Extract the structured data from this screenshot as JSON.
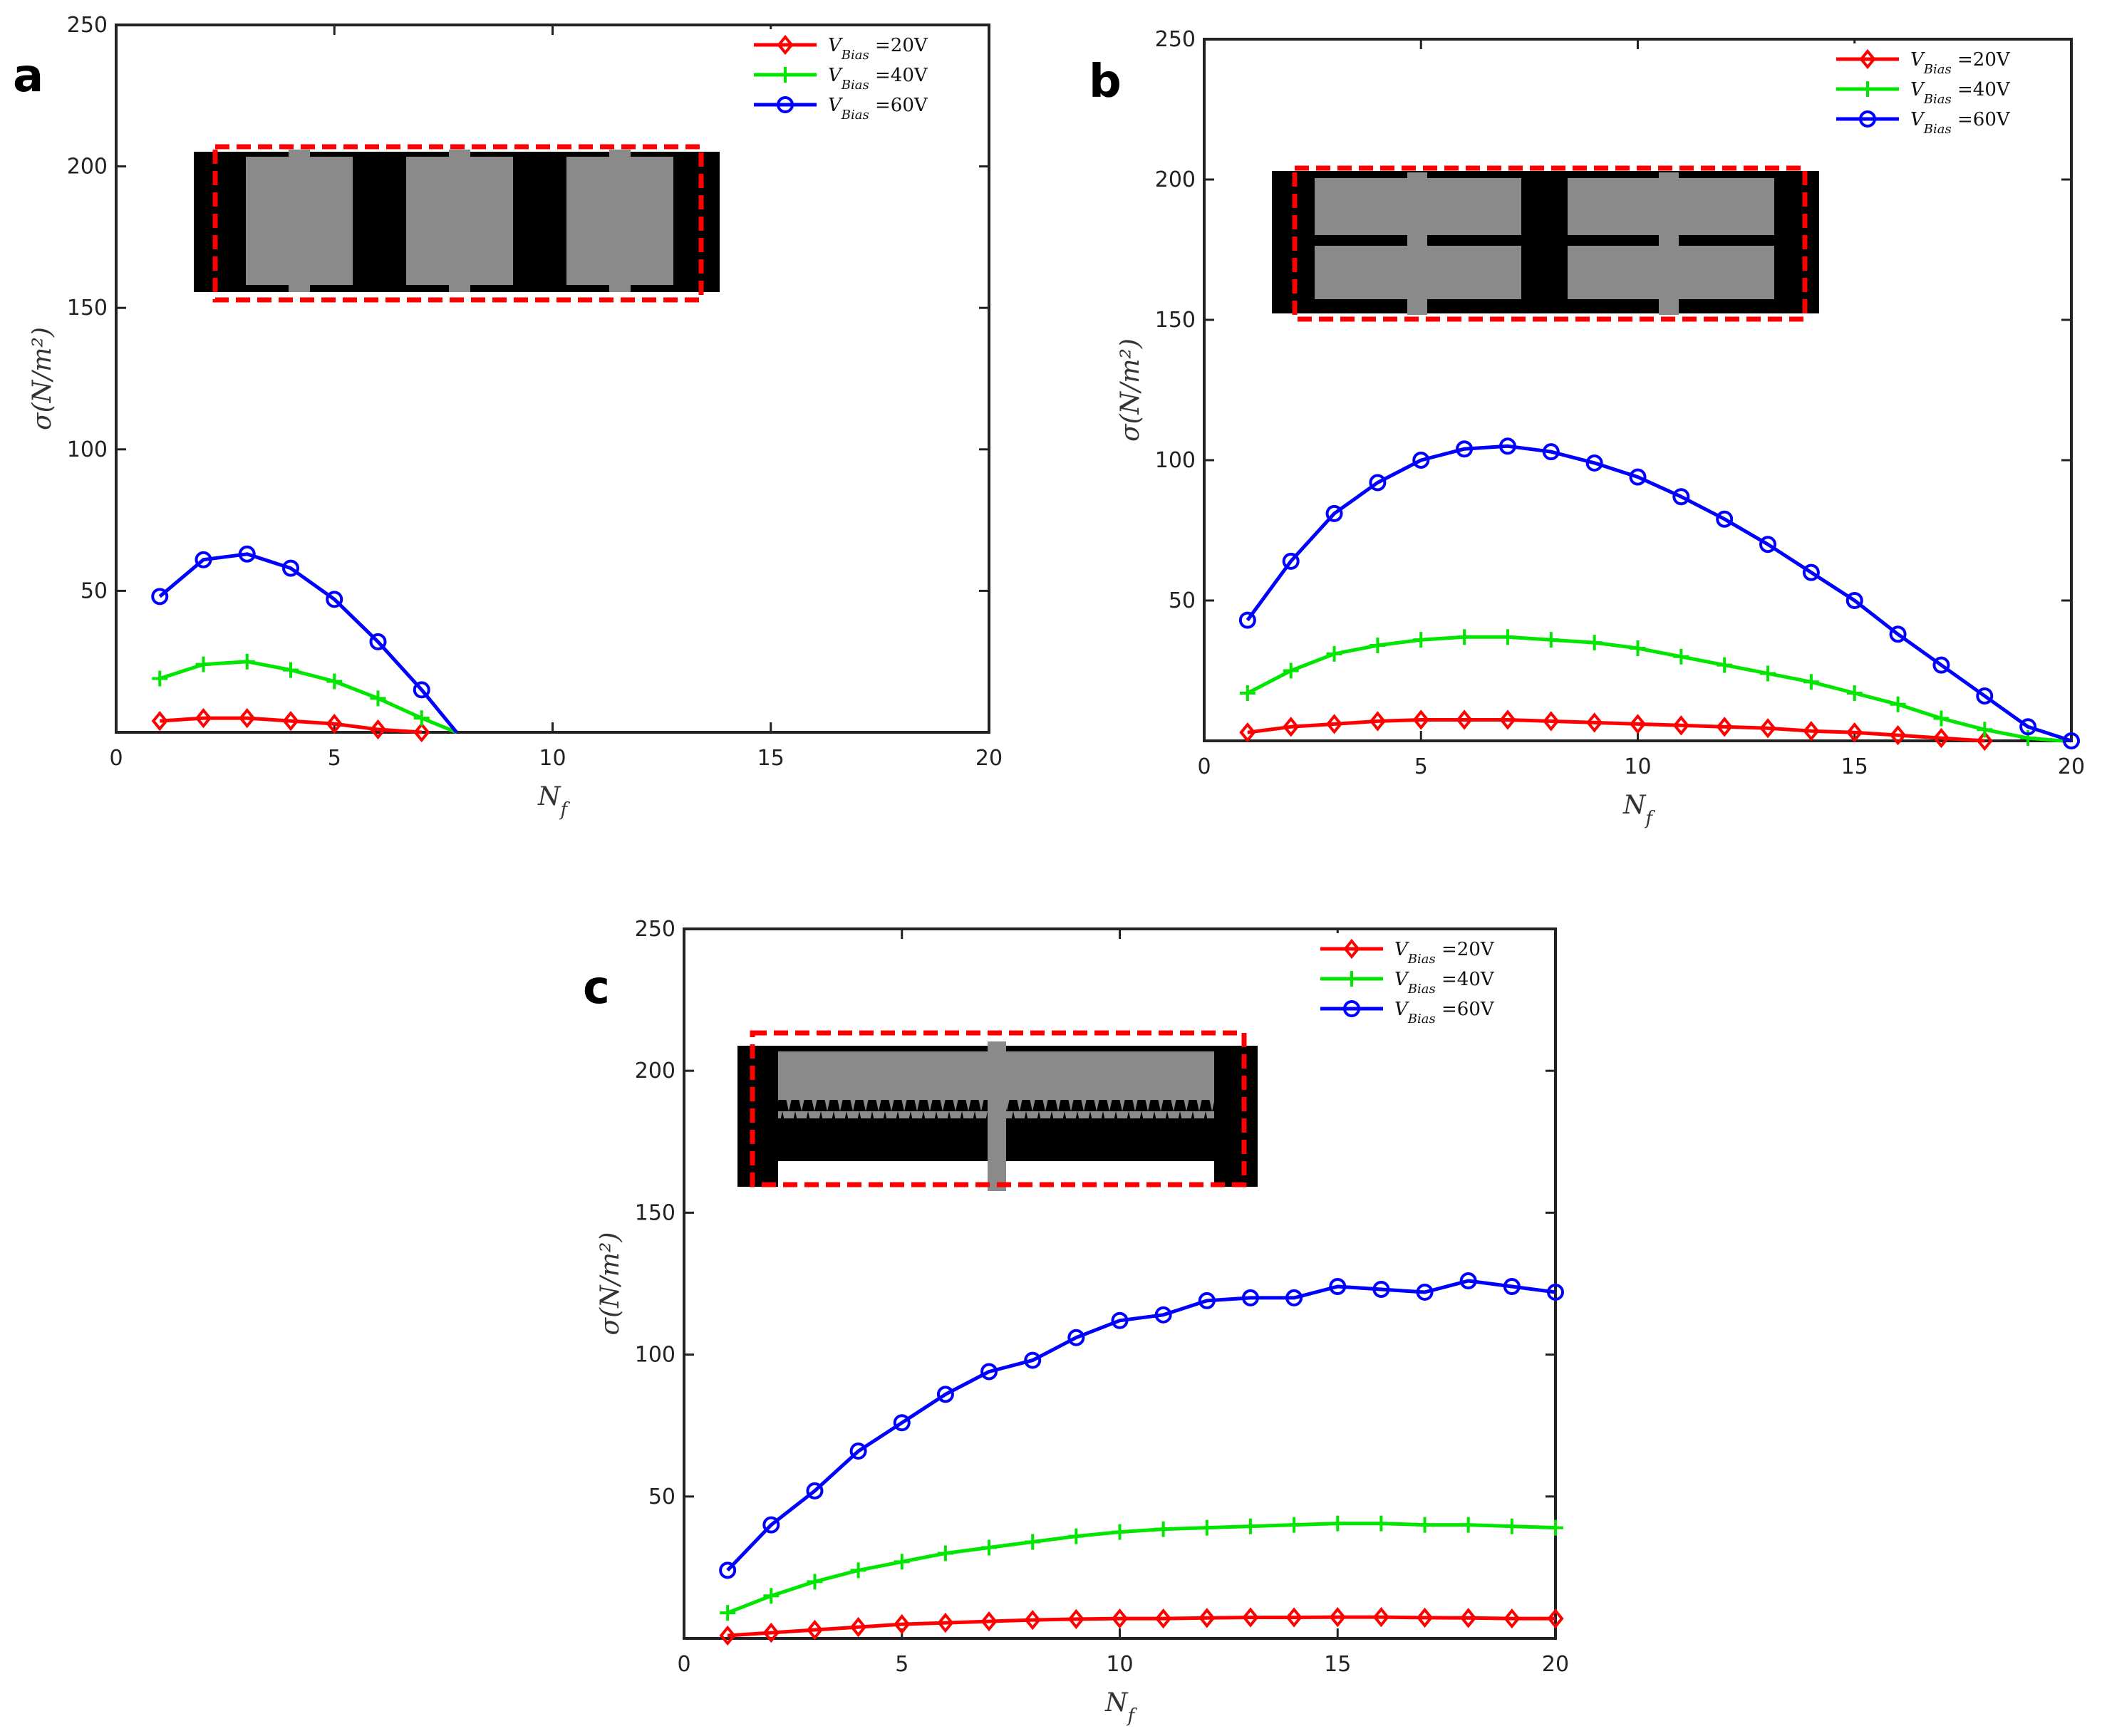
{
  "figure": {
    "panel_letters": [
      "a",
      "b",
      "c"
    ]
  },
  "chart_data": [
    {
      "type": "line",
      "panel": "a",
      "xlabel": "N_f",
      "ylabel": "σ(N/m²)",
      "xlim": [
        0,
        20
      ],
      "ylim": [
        0,
        250
      ],
      "xticks": [
        "0",
        "5",
        "10",
        "15",
        "20"
      ],
      "yticks": [
        "50",
        "100",
        "150",
        "200",
        "250"
      ],
      "legend": "top-right",
      "series": [
        {
          "name": "V_Bias =20V",
          "color": "#ff0000",
          "marker": "diamond",
          "x": [
            1,
            2,
            3,
            4,
            5,
            6,
            7
          ],
          "y": [
            4,
            5,
            5,
            4,
            3,
            1,
            0
          ]
        },
        {
          "name": "V_Bias =40V",
          "color": "#00e600",
          "marker": "plus",
          "x": [
            1,
            2,
            3,
            4,
            5,
            6,
            7,
            7.8
          ],
          "y": [
            19,
            24,
            25,
            22,
            18,
            12,
            5,
            0
          ]
        },
        {
          "name": "V_Bias =60V",
          "color": "#0000ff",
          "marker": "circle",
          "x": [
            1,
            2,
            3,
            4,
            5,
            6,
            7,
            7.8
          ],
          "y": [
            48,
            61,
            63,
            58,
            47,
            32,
            15,
            0
          ]
        }
      ]
    },
    {
      "type": "line",
      "panel": "b",
      "xlabel": "N_f",
      "ylabel": "σ(N/m²)",
      "xlim": [
        0,
        20
      ],
      "ylim": [
        0,
        250
      ],
      "xticks": [
        "0",
        "5",
        "10",
        "15",
        "20"
      ],
      "yticks": [
        "50",
        "100",
        "150",
        "200",
        "250"
      ],
      "legend": "top-right",
      "series": [
        {
          "name": "V_Bias =20V",
          "color": "#ff0000",
          "marker": "diamond",
          "x": [
            1,
            2,
            3,
            4,
            5,
            6,
            7,
            8,
            9,
            10,
            11,
            12,
            13,
            14,
            15,
            16,
            17,
            18
          ],
          "y": [
            3,
            5,
            6,
            7,
            7.5,
            7.5,
            7.5,
            7,
            6.5,
            6,
            5.5,
            5,
            4.5,
            3.5,
            3,
            2,
            1,
            0
          ]
        },
        {
          "name": "V_Bias =40V",
          "color": "#00e600",
          "marker": "plus",
          "x": [
            1,
            2,
            3,
            4,
            5,
            6,
            7,
            8,
            9,
            10,
            11,
            12,
            13,
            14,
            15,
            16,
            17,
            18,
            19,
            19.8
          ],
          "y": [
            17,
            25,
            31,
            34,
            36,
            37,
            37,
            36,
            35,
            33,
            30,
            27,
            24,
            21,
            17,
            13,
            8,
            4,
            1,
            0
          ]
        },
        {
          "name": "V_Bias =60V",
          "color": "#0000ff",
          "marker": "circle",
          "x": [
            1,
            2,
            3,
            4,
            5,
            6,
            7,
            8,
            9,
            10,
            11,
            12,
            13,
            14,
            15,
            16,
            17,
            18,
            19,
            20
          ],
          "y": [
            43,
            64,
            81,
            92,
            100,
            104,
            105,
            103,
            99,
            94,
            87,
            79,
            70,
            60,
            50,
            38,
            27,
            16,
            5,
            0
          ]
        }
      ]
    },
    {
      "type": "line",
      "panel": "c",
      "xlabel": "N_f",
      "ylabel": "σ(N/m²)",
      "xlim": [
        0,
        20
      ],
      "ylim": [
        0,
        250
      ],
      "xticks": [
        "0",
        "5",
        "10",
        "15",
        "20"
      ],
      "yticks": [
        "50",
        "100",
        "150",
        "200",
        "250"
      ],
      "legend": "top-right",
      "series": [
        {
          "name": "V_Bias =20V",
          "color": "#ff0000",
          "marker": "diamond",
          "x": [
            1,
            2,
            3,
            4,
            5,
            6,
            7,
            8,
            9,
            10,
            11,
            12,
            13,
            14,
            15,
            16,
            17,
            18,
            19,
            20
          ],
          "y": [
            1,
            2,
            3,
            4,
            5,
            5.5,
            6,
            6.5,
            6.8,
            7,
            7,
            7.2,
            7.4,
            7.4,
            7.5,
            7.5,
            7.3,
            7.2,
            7,
            7
          ]
        },
        {
          "name": "V_Bias =40V",
          "color": "#00e600",
          "marker": "plus",
          "x": [
            1,
            2,
            3,
            4,
            5,
            6,
            7,
            8,
            9,
            10,
            11,
            12,
            13,
            14,
            15,
            16,
            17,
            18,
            19,
            20
          ],
          "y": [
            9,
            15,
            20,
            24,
            27,
            30,
            32,
            34,
            36,
            37.5,
            38.5,
            39,
            39.5,
            40,
            40.5,
            40.5,
            40,
            40,
            39.5,
            39
          ]
        },
        {
          "name": "V_Bias =60V",
          "color": "#0000ff",
          "marker": "circle",
          "x": [
            1,
            2,
            3,
            4,
            5,
            6,
            7,
            8,
            9,
            10,
            11,
            12,
            13,
            14,
            15,
            16,
            17,
            18,
            19,
            20
          ],
          "y": [
            24,
            40,
            52,
            66,
            76,
            86,
            94,
            98,
            106,
            112,
            114,
            119,
            120,
            120,
            124,
            123,
            122,
            126,
            124,
            122
          ]
        }
      ]
    }
  ]
}
